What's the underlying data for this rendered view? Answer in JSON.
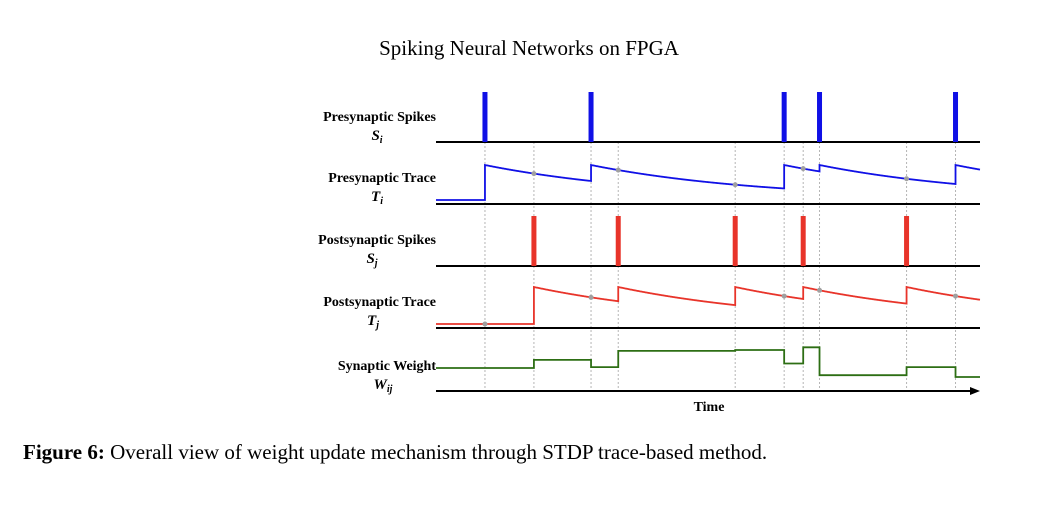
{
  "header": {
    "title": "Spiking Neural Networks on FPGA"
  },
  "rows": [
    {
      "label": "Presynaptic Spikes",
      "symbol": "S",
      "subscript": "i"
    },
    {
      "label": "Presynaptic Trace",
      "symbol": "T",
      "subscript": "i"
    },
    {
      "label": "Postsynaptic Spikes",
      "symbol": "S",
      "subscript": "j"
    },
    {
      "label": "Postsynaptic Trace",
      "symbol": "T",
      "subscript": "j"
    },
    {
      "label": "Synaptic Weight",
      "symbol": "W",
      "subscript": "ij"
    }
  ],
  "axis": {
    "label": "Time"
  },
  "caption": {
    "prefix": "Figure 6:",
    "text": " Overall view of weight update mechanism through STDP trace-based method."
  },
  "colors": {
    "presynaptic": "#1010e6",
    "postsynaptic": "#e8342a",
    "weight": "#2d6e14",
    "gridline": "#b5b5b5",
    "sample_dot": "#a0a0a0"
  },
  "chart_data": {
    "type": "line",
    "time_range": [
      0,
      100
    ],
    "presynaptic_spike_times": [
      9.0,
      28.5,
      64.0,
      70.5,
      95.5
    ],
    "postsynaptic_spike_times": [
      18.0,
      33.5,
      55.0,
      67.5,
      86.5
    ],
    "trace_decay_tau": 10,
    "weight_steps": [
      {
        "t": 0,
        "w": 0.0
      },
      {
        "t": 18.0,
        "w": 0.9
      },
      {
        "t": 28.5,
        "w": 0.1
      },
      {
        "t": 33.5,
        "w": 1.9
      },
      {
        "t": 55.0,
        "w": 2.0
      },
      {
        "t": 64.0,
        "w": 0.5
      },
      {
        "t": 67.5,
        "w": 2.3
      },
      {
        "t": 70.5,
        "w": -0.8
      },
      {
        "t": 86.5,
        "w": 0.1
      },
      {
        "t": 95.5,
        "w": -1.0
      }
    ]
  }
}
